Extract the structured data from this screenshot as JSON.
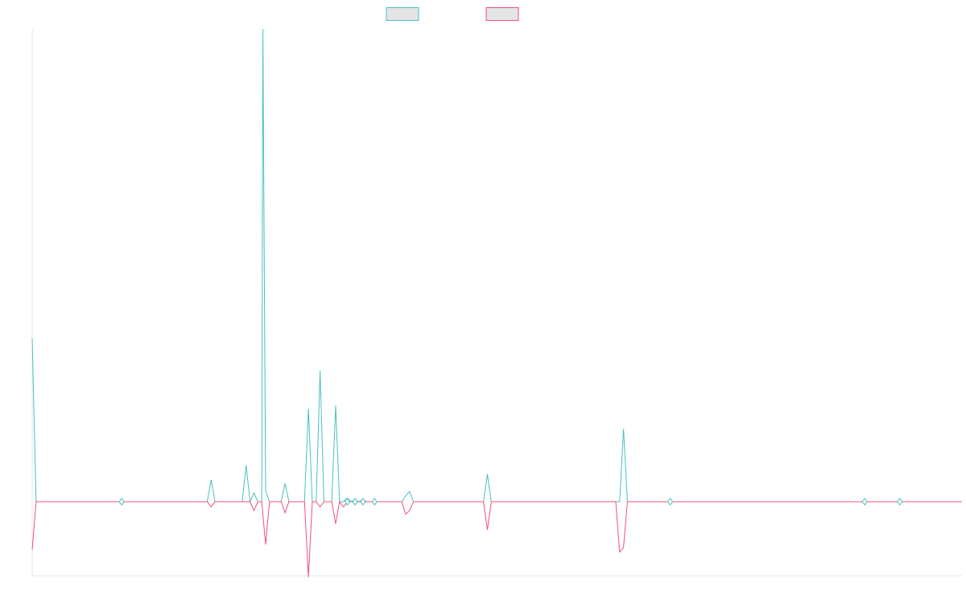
{
  "chart_data": {
    "type": "line",
    "title": "",
    "xlabel": "",
    "ylabel": "",
    "grid": false,
    "legend_position": "top-center",
    "x_count": 240,
    "ylim": [
      -100,
      730
    ],
    "series": [
      {
        "color": "#4bc0c0",
        "legend_fill": "#e5e5e5",
        "values": {
          "0": 225,
          "1": 0,
          "23": 0.5,
          "46": 30,
          "55": 50,
          "57": 12,
          "59": 0.5,
          "60": 0.5,
          "61": 0.5,
          "62": 0.5,
          "63": 0.5,
          "64": 0.5,
          "65": 0.5,
          "66": 0.5,
          "67": 0.5,
          "68": 0.5,
          "69": 0.5,
          "70": 0.5,
          "71": 0.5,
          "72": 0.5,
          "73": 0.5,
          "74": 0.5,
          "75": 0.5,
          "76": 0.5,
          "77": 0.5,
          "78": 0.5,
          "79": 0.5,
          "80": 0.5,
          "81": 0.5,
          "82": 0.5,
          "83": 0.5,
          "84": 0.5,
          "85": 0.5,
          "86": 0.5,
          "87": 0.5,
          "88": 0.5,
          "89": 0.5,
          "90": 0.5,
          "91": 0.5,
          "92": 0.5,
          "93": 0.5,
          "94": 0.5,
          "95": 0.5,
          "96": 0.5,
          "97": 0.5,
          "98": 0.5,
          "99": 0.5,
          "100": 0.5,
          "101": 0.5,
          "102": 0.5,
          "103": 0.5,
          "104": 0.5,
          "105": 0.5,
          "106": 0.5,
          "107": 0.5,
          "108": 0.5,
          "109": 0.5,
          "110": 0.5,
          "111": 0.5,
          "112": 0.5,
          "113": 0.5,
          "114": 0.5,
          "115": 0.5,
          "116": 0.5,
          "117": 0.5,
          "118": 0.5,
          "119": 0.5,
          "120": 0.5,
          "121": 0.5,
          "122": 0.5,
          "123": 0.5,
          "124": 0.5,
          "125": 0.5,
          "126": 0.5,
          "127": 0.5,
          "128": 0.5,
          "129": 0.5,
          "130": 0.5,
          "131": 0.5,
          "132": 0.5,
          "133": 0.5,
          "134": 0.5,
          "135": 0.5,
          "136": 0.5,
          "137": 0.5,
          "138": 0.5,
          "139": 0.5,
          "140": 0.5,
          "141": 0.5,
          "142": 0.5,
          "143": 0.5,
          "144": 0.5,
          "145": 0.5,
          "146": 0.5,
          "147": 0.5,
          "148": 0.5,
          "149": 0.5,
          "150": 0.5,
          "151": 0.5,
          "152": 0.5,
          "153": 0.5,
          "154": 0.5,
          "155": 0.5,
          "156": 0.5,
          "157": 0.5,
          "158": 0.5,
          "159": 0.5,
          "160": 0.5,
          "161": 0.5,
          "162": 0.5,
          "163": 0.5,
          "164": 0.5,
          "165": 0.5,
          "166": 0.5,
          "167": 0.5,
          "168": 0.5,
          "169": 0.5,
          "170": 0.5,
          "171": 0.5,
          "172": 0.5,
          "173": 0.5,
          "174": 0.5,
          "175": 0.5,
          "176": 0.5,
          "177": 0.5,
          "178": 0.5,
          "179": 0.5,
          "180": 0.5,
          "181": 0.5,
          "182": 0.5,
          "183": 0.5,
          "184": 0.5,
          "185": 0.5,
          "186": 0.5,
          "187": 0.5,
          "188": 0.5,
          "189": 0.5,
          "190": 0.5,
          "191": 0.5,
          "192": 0.5,
          "193": 0.5,
          "194": 0.5,
          "195": 0.5,
          "196": 0.5,
          "197": 0.5,
          "198": 0.5,
          "199": 0.5,
          "200": 0.5,
          "201": 0.5,
          "202": 0.5,
          "203": 0.5,
          "204": 0.5,
          "205": 0.5,
          "206": 0.5,
          "207": 0.5,
          "208": 0.5,
          "209": 0.5,
          "210": 0.5,
          "211": 0.5,
          "212": 0.5,
          "213": 0.5,
          "214": 0.5,
          "215": 0.5,
          "216": 0.5,
          "217": 0.5,
          "218": 0.5,
          "219": 0.5,
          "220": 0.5,
          "221": 0.5,
          "222": 0.5,
          "223": 0.5,
          "224": 0.5,
          "225": 0.5,
          "226": 0.5,
          "227": 0.5,
          "228": 0.5,
          "229": 0.5,
          "230": 0.5,
          "231": 0.5,
          "232": 0.5,
          "233": 0.5,
          "234": 0.5,
          "235": 0.5,
          "236": 0.5,
          "237": 0.5,
          "238": 0.5,
          "239": 0.5
        }
      },
      {
        "color": "#f0517a",
        "legend_fill": "#e5e5e5",
        "values": {
          "0": -65,
          "1": 0,
          "23": -0.5,
          "46": -7,
          "57": -12,
          "59": -58,
          "65": -15,
          "72": -102,
          "75": -7,
          "78": -30,
          "80": -7,
          "81": -0.5,
          "83": -0.5,
          "96": -17,
          "97": -12,
          "98": -0.5,
          "117": -38,
          "152": -68,
          "153": -62,
          "154": -0.5,
          "164": -0.5,
          "214": -0.5,
          "223": -0.5,
          "224": -0.5
        }
      }
    ],
    "peaks": [
      {
        "series": 0,
        "points": [
          [
            0,
            225
          ],
          [
            1,
            0
          ],
          [
            45,
            0
          ],
          [
            46,
            30
          ],
          [
            47,
            0
          ],
          [
            54,
            0
          ],
          [
            55,
            50
          ],
          [
            56,
            0
          ],
          [
            57,
            12
          ],
          [
            58,
            0
          ],
          [
            59,
            0
          ],
          [
            59.3,
            650
          ],
          [
            60,
            15
          ],
          [
            61,
            0
          ],
          [
            64,
            0
          ],
          [
            65,
            25
          ],
          [
            66,
            0
          ],
          [
            70,
            0
          ],
          [
            71,
            128
          ],
          [
            72,
            0
          ],
          [
            73,
            0
          ],
          [
            74,
            180
          ],
          [
            75,
            0
          ],
          [
            77,
            0
          ],
          [
            78,
            132
          ],
          [
            79,
            0
          ],
          [
            80,
            0
          ],
          [
            81,
            5
          ],
          [
            82,
            0
          ],
          [
            83,
            3
          ],
          [
            84,
            0
          ],
          [
            85,
            3
          ],
          [
            86,
            0
          ],
          [
            95,
            0
          ],
          [
            96,
            8
          ],
          [
            97,
            14
          ],
          [
            98,
            0
          ],
          [
            116,
            0
          ],
          [
            117,
            38
          ],
          [
            118,
            0
          ],
          [
            151,
            0
          ],
          [
            152,
            100
          ],
          [
            153,
            0
          ],
          [
            239,
            0
          ]
        ]
      },
      {
        "series": 1,
        "points": [
          [
            0,
            -65
          ],
          [
            1,
            0
          ],
          [
            45,
            0
          ],
          [
            46,
            -7
          ],
          [
            47,
            0
          ],
          [
            56,
            0
          ],
          [
            57,
            -12
          ],
          [
            58,
            0
          ],
          [
            59,
            0
          ],
          [
            60,
            -58
          ],
          [
            61,
            0
          ],
          [
            64,
            0
          ],
          [
            65,
            -15
          ],
          [
            66,
            0
          ],
          [
            70,
            0
          ],
          [
            71,
            -102
          ],
          [
            72,
            0
          ],
          [
            73,
            0
          ],
          [
            74,
            -7
          ],
          [
            75,
            0
          ],
          [
            77,
            0
          ],
          [
            78,
            -30
          ],
          [
            79,
            0
          ],
          [
            80,
            -7
          ],
          [
            81,
            0
          ],
          [
            95,
            0
          ],
          [
            96,
            -17
          ],
          [
            97,
            -12
          ],
          [
            98,
            0
          ],
          [
            116,
            0
          ],
          [
            117,
            -38
          ],
          [
            118,
            0
          ],
          [
            150,
            0
          ],
          [
            151,
            -68
          ],
          [
            152,
            -62
          ],
          [
            153,
            0
          ],
          [
            239,
            0
          ]
        ]
      }
    ]
  },
  "legend": {
    "items": [
      {
        "color": "#4bc0c0",
        "fill": "#e5e5e5"
      },
      {
        "color": "#f0517a",
        "fill": "#e5e5e5"
      }
    ]
  }
}
